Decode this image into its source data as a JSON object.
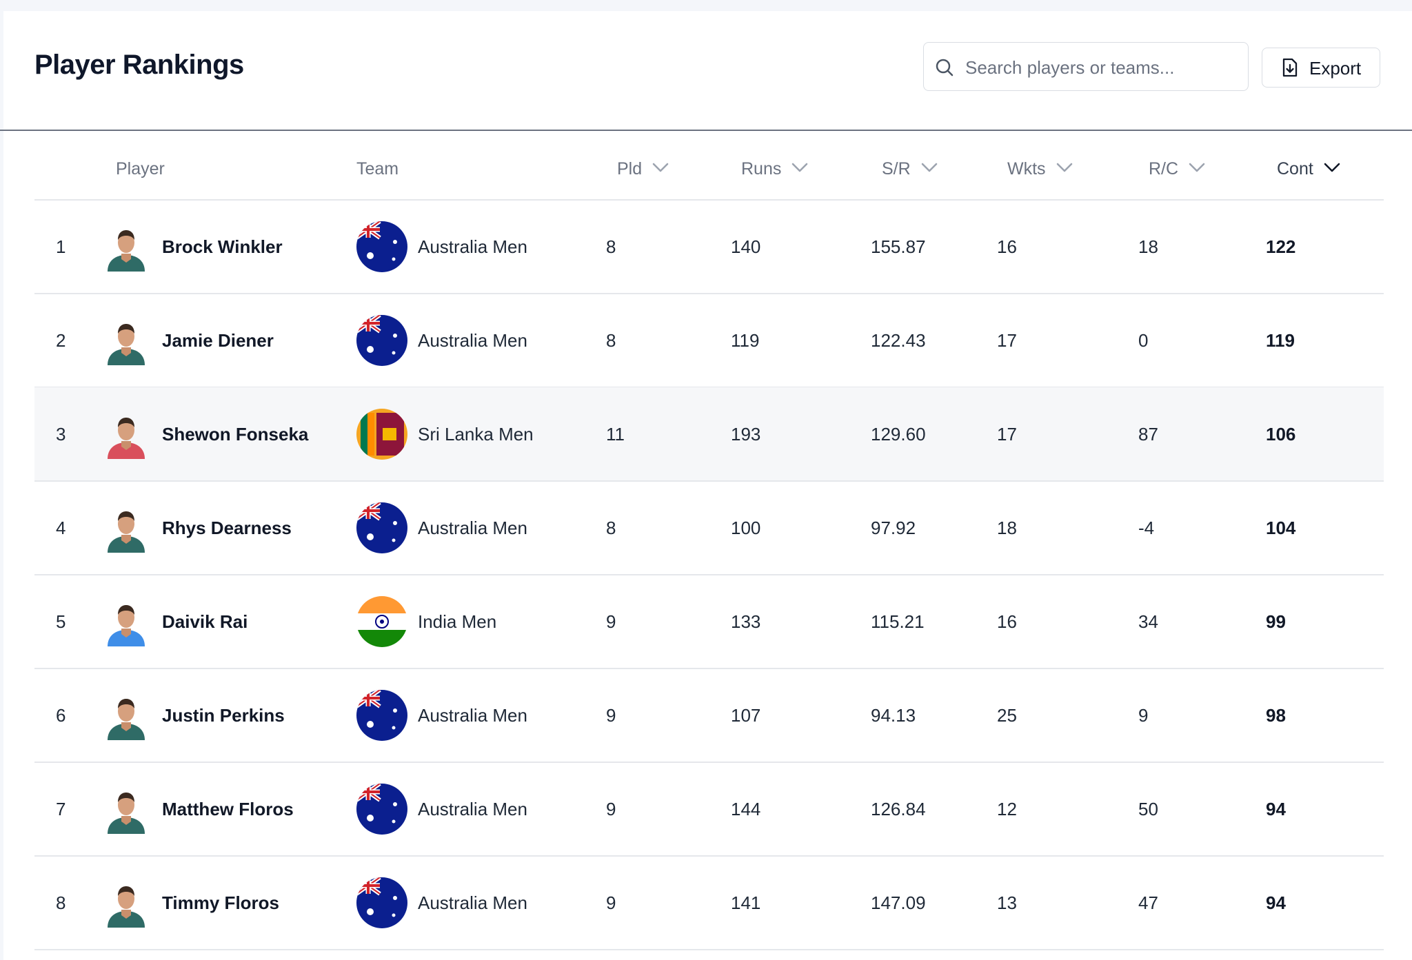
{
  "header": {
    "title": "Player Rankings",
    "search_placeholder": "Search players or teams...",
    "export": "Export"
  },
  "table": {
    "columns": [
      "Player",
      "Team",
      "Pld",
      "Runs",
      "S/R",
      "Wkts",
      "R/C",
      "Cont"
    ],
    "rows": [
      [
        "1",
        "Brock Winkler",
        "Australia Men",
        "8",
        "140",
        "155.87",
        "16",
        "18",
        "122"
      ],
      [
        "2",
        "Jamie Diener",
        "Australia Men",
        "8",
        "119",
        "122.43",
        "17",
        "0",
        "119"
      ],
      [
        "3",
        "Shewon Fonseka",
        "Sri Lanka Men",
        "11",
        "193",
        "129.60",
        "17",
        "87",
        "106"
      ],
      [
        "4",
        "Rhys Dearness",
        "Australia Men",
        "8",
        "100",
        "97.92",
        "18",
        "-4",
        "104"
      ],
      [
        "5",
        "Daivik Rai",
        "India Men",
        "9",
        "133",
        "115.21",
        "16",
        "34",
        "99"
      ],
      [
        "6",
        "Justin Perkins",
        "Australia Men",
        "9",
        "107",
        "94.13",
        "25",
        "9",
        "98"
      ],
      [
        "7",
        "Matthew Floros",
        "Australia Men",
        "9",
        "144",
        "126.84",
        "12",
        "50",
        "94"
      ],
      [
        "8",
        "Timmy Floros",
        "Australia Men",
        "9",
        "141",
        "147.09",
        "13",
        "47",
        "94"
      ]
    ]
  }
}
